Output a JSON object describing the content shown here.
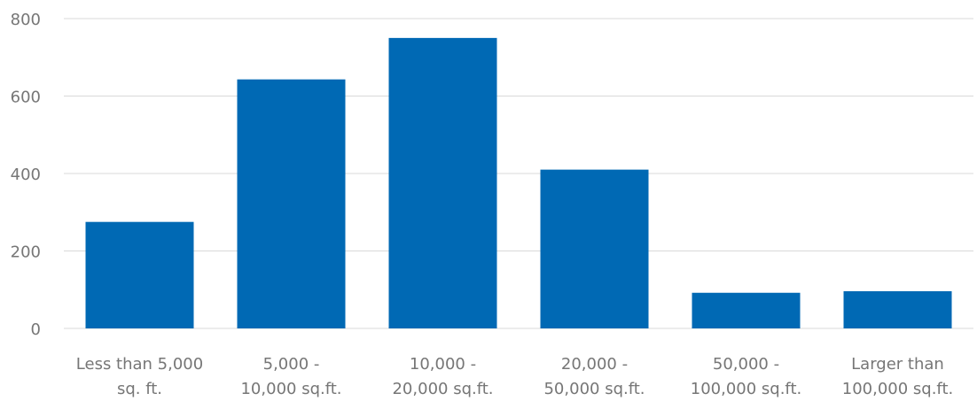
{
  "chart_data": {
    "type": "bar",
    "title": "",
    "xlabel": "",
    "ylabel": "",
    "categories": [
      [
        "Less than 5,000",
        "sq. ft."
      ],
      [
        "5,000 -",
        "10,000 sq.ft."
      ],
      [
        "10,000 -",
        "20,000 sq.ft."
      ],
      [
        "20,000 -",
        "50,000 sq.ft."
      ],
      [
        "50,000 -",
        "100,000 sq.ft."
      ],
      [
        "Larger than",
        "100,000 sq.ft."
      ]
    ],
    "values": [
      275,
      643,
      750,
      410,
      92,
      96
    ],
    "ylim": [
      0,
      800
    ],
    "yticks": [
      "0",
      "200",
      "400",
      "600",
      "800"
    ],
    "grid": true,
    "legend": "none",
    "bar_color": "#0069b4",
    "grid_color": "#d9d9d9",
    "label_color": "#767676"
  }
}
